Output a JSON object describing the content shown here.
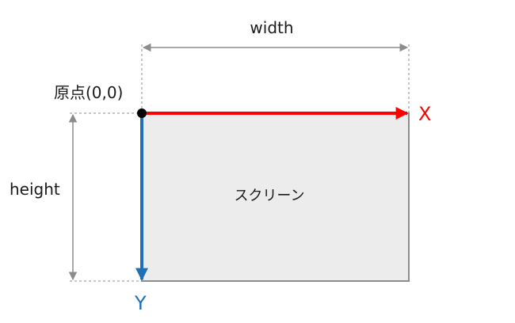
{
  "labels": {
    "width": "width",
    "height": "height",
    "origin": "原点(0,0)",
    "x_axis": "X",
    "y_axis": "Y",
    "screen": "スクリーン"
  },
  "colors": {
    "x_axis": "#ff0000",
    "y_axis": "#1f6fb5",
    "screen_fill": "#ececec",
    "screen_border": "#8c8c8c",
    "dimension_lines": "#8c8c8c",
    "origin_dot": "#000000",
    "text": "#1a1a1a"
  }
}
